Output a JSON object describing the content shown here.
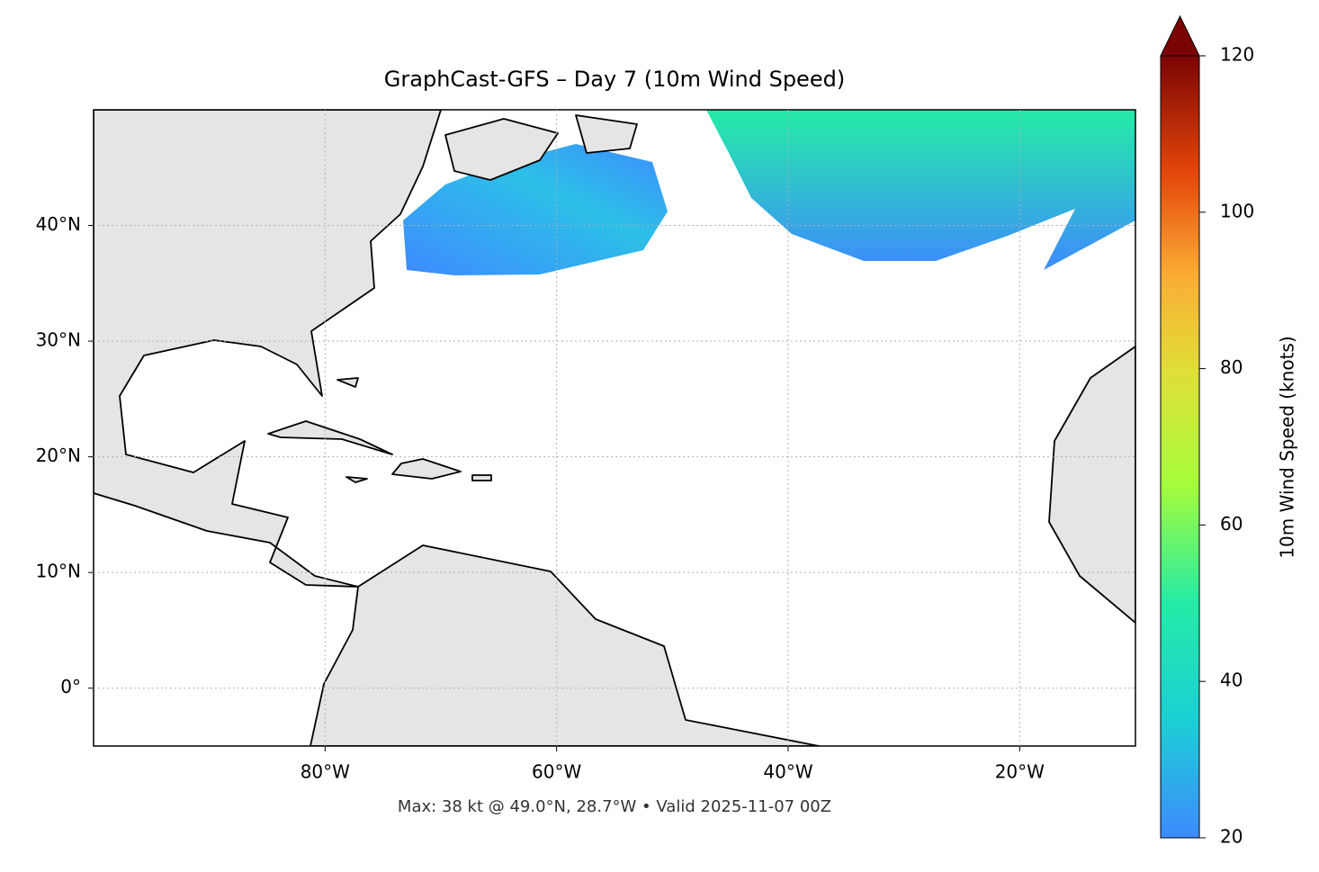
{
  "chart_data": {
    "type": "map",
    "title": "GraphCast-GFS – Day 7 (10m Wind Speed)",
    "annotation": "Max: 38 kt @ 49.0°N, 28.7°W • Valid 2025-11-07 00Z",
    "xlim": [
      -100,
      -10
    ],
    "ylim": [
      -5,
      50
    ],
    "xticks": [
      {
        "value": -80,
        "label": "80°W"
      },
      {
        "value": -60,
        "label": "60°W"
      },
      {
        "value": -40,
        "label": "40°W"
      },
      {
        "value": -20,
        "label": "20°W"
      }
    ],
    "yticks": [
      {
        "value": 0,
        "label": "0°"
      },
      {
        "value": 10,
        "label": "10°N"
      },
      {
        "value": 20,
        "label": "20°N"
      },
      {
        "value": 30,
        "label": "30°N"
      },
      {
        "value": 40,
        "label": "40°N"
      }
    ],
    "grid": true,
    "colorbar": {
      "label": "10m Wind Speed (knots)",
      "lim": [
        20,
        120
      ],
      "ticks": [
        20,
        40,
        60,
        80,
        100,
        120
      ]
    }
  }
}
